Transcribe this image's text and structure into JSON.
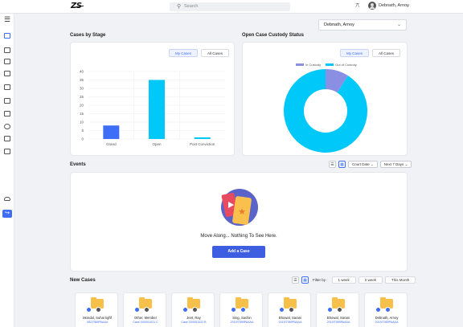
{
  "header": {
    "logo_text": "ZS",
    "search_placeholder": "Search",
    "user_name": "Debnath, Arnoy"
  },
  "sidebar": {
    "items": [
      {
        "icon": "menu-icon"
      },
      {
        "icon": "dashboard-icon",
        "active": true
      },
      {
        "icon": "document-icon"
      },
      {
        "icon": "printer-icon"
      },
      {
        "icon": "clipboard-icon"
      },
      {
        "icon": "mail-icon"
      },
      {
        "icon": "storage-icon"
      },
      {
        "icon": "folder-icon"
      },
      {
        "icon": "notes-icon"
      },
      {
        "icon": "user-icon"
      },
      {
        "icon": "bank-icon"
      },
      {
        "icon": "cloud-icon"
      },
      {
        "icon": "logout-icon"
      }
    ]
  },
  "case_selector": {
    "value": "Debnath, Arnoy"
  },
  "cases_by_stage": {
    "title": "Cases by Stage",
    "toggle": [
      "My Cases",
      "All Cases"
    ]
  },
  "open_custody": {
    "title": "Open Case Custody Status",
    "toggle": [
      "My Cases",
      "All Cases"
    ]
  },
  "events": {
    "title": "Events",
    "sort_label": "Court Date",
    "range_label": "Next 7 Days",
    "empty_message": "Move Along... Nothing To See Here.",
    "add_button": "Add a Case"
  },
  "new_cases": {
    "title": "New Cases",
    "filter_label": "Filter by :",
    "filters": [
      "1 week",
      "2 week",
      "This Month"
    ],
    "cards": [
      {
        "name": "Mondal, Suhai kgftf",
        "sub": "XB27989PAAAA"
      },
      {
        "name": "Other, Member",
        "sub": "Case 0X0001021 C"
      },
      {
        "name": "Jeet, Ray",
        "sub": "Case 0X0001022 B"
      },
      {
        "name": "Sing, Sachin",
        "sub": "2019/7989PAAAA"
      },
      {
        "name": "Bhowal, Sarani",
        "sub": "2019/7989PAAAA"
      },
      {
        "name": "Bhowal, Sarani",
        "sub": "2019/7989PAAAA"
      },
      {
        "name": "Debnath, Arnoy",
        "sub": "2019/7989PAAAA"
      }
    ]
  },
  "chart_data": [
    {
      "type": "bar",
      "categories": [
        "Grand",
        "Open",
        "Post Conviction"
      ],
      "values": [
        8,
        35,
        1
      ],
      "ylim": [
        0,
        40
      ],
      "yticks": [
        0,
        5,
        10,
        15,
        20,
        25,
        30,
        35,
        40
      ],
      "color": "#00c8f8",
      "highlight_color": "#3d6ef5",
      "grid": true
    },
    {
      "type": "pie",
      "donut": true,
      "legend_position": "top",
      "series": [
        {
          "name": "In Custody",
          "value": 9,
          "color": "#8b8fe4"
        },
        {
          "name": "Out of Custody",
          "value": 91,
          "color": "#00c8f8"
        }
      ]
    }
  ]
}
